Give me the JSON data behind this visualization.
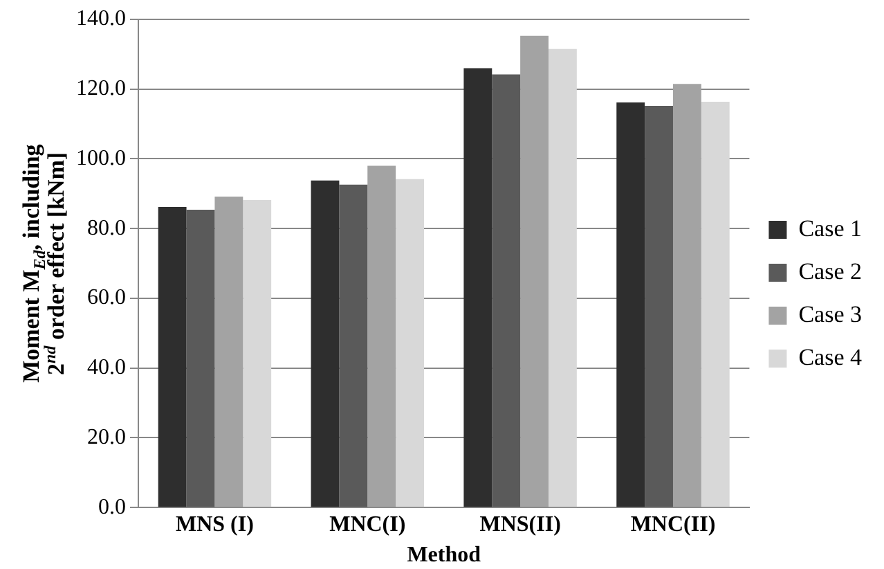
{
  "chart_data": {
    "type": "bar",
    "categories": [
      "MNS (I)",
      "MNC(I)",
      "MNS(II)",
      "MNC(II)"
    ],
    "xlabel": "Method",
    "ylabel": "Moment M$_{Ed}$, including 2$^{nd}$ order effect [kNm]",
    "series": [
      {
        "name": "Case 1",
        "color": "#2e2e2e",
        "values": [
          86.2,
          93.8,
          126.0,
          116.2
        ]
      },
      {
        "name": "Case 2",
        "color": "#5a5a5a",
        "values": [
          85.4,
          92.6,
          124.2,
          115.2
        ]
      },
      {
        "name": "Case 3",
        "color": "#a3a3a3",
        "values": [
          89.2,
          98.0,
          135.3,
          121.5
        ]
      },
      {
        "name": "Case 4",
        "color": "#d8d8d8",
        "values": [
          88.2,
          94.2,
          131.5,
          116.4
        ]
      }
    ],
    "ylim": [
      0,
      140
    ],
    "yticks": [
      {
        "value": 0,
        "label": "0.0"
      },
      {
        "value": 20,
        "label": "20.0"
      },
      {
        "value": 40,
        "label": "40.0"
      },
      {
        "value": 60,
        "label": "60.0"
      },
      {
        "value": 80,
        "label": "80.0"
      },
      {
        "value": 100,
        "label": "100.0"
      },
      {
        "value": 120,
        "label": "120.0"
      },
      {
        "value": 140,
        "label": "140.0"
      }
    ],
    "grid": "y",
    "legend": "right"
  }
}
